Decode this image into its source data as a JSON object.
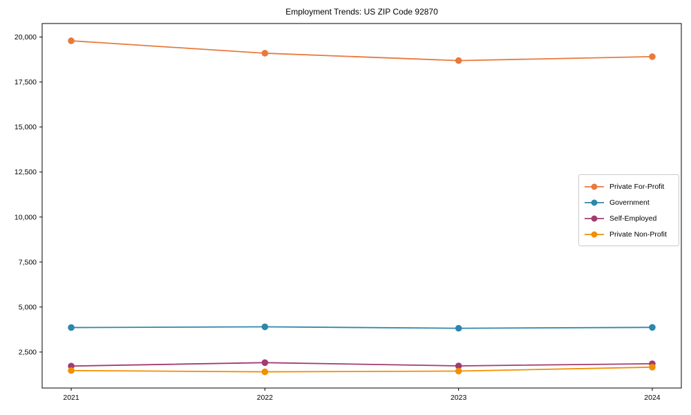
{
  "title": "Employment Trends: US ZIP Code 92870",
  "chart_data": {
    "type": "line",
    "title": "Employment Trends: US ZIP Code 92870",
    "xlabel": "",
    "ylabel": "",
    "x": [
      2021,
      2022,
      2023,
      2024
    ],
    "x_tick_labels": [
      "2021",
      "2022",
      "2023",
      "2024"
    ],
    "y_ticks": [
      2500,
      5000,
      7500,
      10000,
      12500,
      15000,
      17500,
      20000
    ],
    "y_tick_labels": [
      "2,500",
      "5,000",
      "7,500",
      "10,000",
      "12,500",
      "15,000",
      "17,500",
      "20,000"
    ],
    "xlim": [
      2020.85,
      2024.15
    ],
    "ylim": [
      500,
      20750
    ],
    "grid": false,
    "legend_position": "center right",
    "series": [
      {
        "name": "Private For-Profit",
        "color": "#E8793D",
        "values": [
          19790,
          19100,
          18690,
          18910
        ]
      },
      {
        "name": "Government",
        "color": "#2E86AB",
        "values": [
          3860,
          3900,
          3820,
          3870
        ]
      },
      {
        "name": "Self-Employed",
        "color": "#A23B72",
        "values": [
          1720,
          1910,
          1730,
          1850
        ]
      },
      {
        "name": "Private Non-Profit",
        "color": "#F18F01",
        "values": [
          1470,
          1400,
          1440,
          1660
        ]
      }
    ]
  }
}
